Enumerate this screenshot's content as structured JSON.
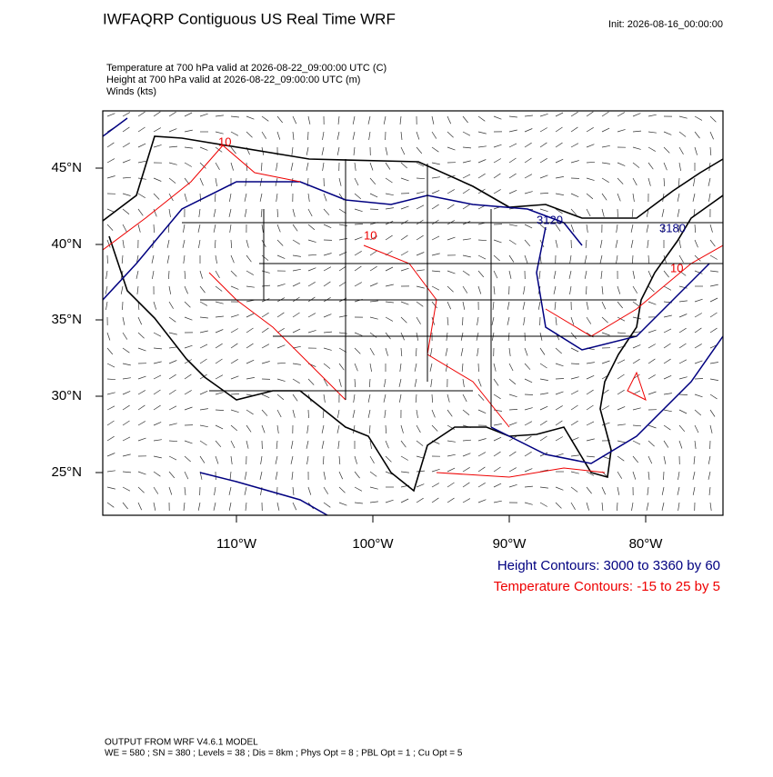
{
  "header": {
    "title": "IWFAQRP Contiguous US Real Time WRF",
    "init": "Init: 2026-08-16_00:00:00",
    "fields": [
      "Temperature at 700 hPa valid at 2026-08-22_09:00:00 UTC   (C)",
      "Height at 700 hPa valid at 2026-08-22_09:00:00 UTC   (m)",
      "Winds   (kts)"
    ]
  },
  "map": {
    "lat_labels": [
      "45°N",
      "40°N",
      "35°N",
      "30°N",
      "25°N"
    ],
    "lon_labels": [
      "110°W",
      "100°W",
      "90°W",
      "80°W"
    ],
    "contour_labels": [
      "10",
      "10",
      "3120",
      "10",
      "3180"
    ]
  },
  "legend": {
    "height": "Height Contours: 3000 to 3360 by 60",
    "temperature": "Temperature Contours: -15 to 25 by 5"
  },
  "footer": [
    "OUTPUT FROM WRF V4.6.1 MODEL",
    "WE = 580 ; SN = 380 ; Levels = 38 ; Dis = 8km ; Phys Opt = 8 ; PBL Opt = 1 ; Cu Opt = 5"
  ]
}
